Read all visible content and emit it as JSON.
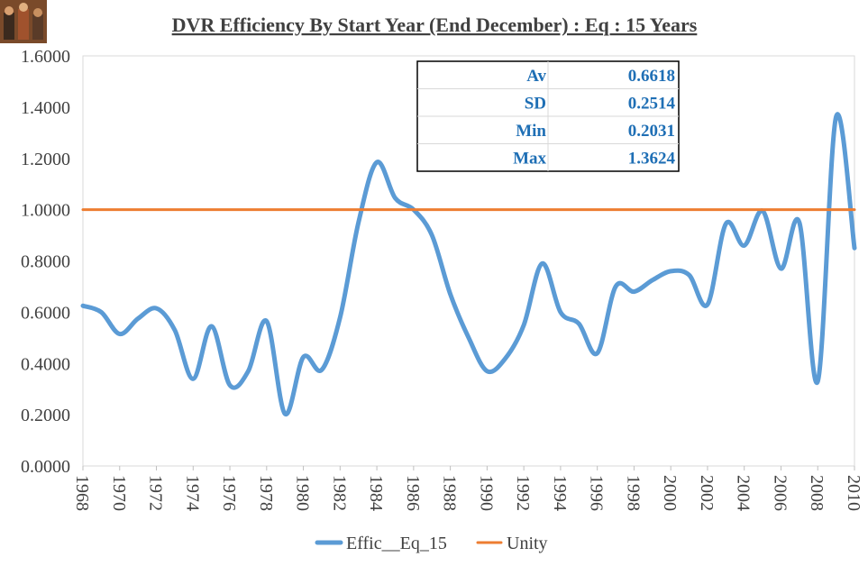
{
  "chart_data": {
    "type": "line",
    "title": "DVR Efficiency By Start Year (End December) : Eq : 15 Years",
    "xlabel": "",
    "ylabel": "",
    "xlim": [
      1968,
      2010
    ],
    "ylim": [
      0,
      1.6
    ],
    "yticks": [
      "0.0000",
      "0.2000",
      "0.4000",
      "0.6000",
      "0.8000",
      "1.0000",
      "1.2000",
      "1.4000",
      "1.6000"
    ],
    "xticks": [
      "1968",
      "1970",
      "1972",
      "1974",
      "1976",
      "1978",
      "1980",
      "1982",
      "1984",
      "1986",
      "1988",
      "1990",
      "1992",
      "1994",
      "1996",
      "1998",
      "2000",
      "2002",
      "2004",
      "2006",
      "2008",
      "2010"
    ],
    "grid": false,
    "legend_position": "bottom",
    "series": [
      {
        "name": "Effic__Eq_15",
        "color": "#5b9bd5",
        "x": [
          1968,
          1969,
          1970,
          1971,
          1972,
          1973,
          1974,
          1975,
          1976,
          1977,
          1978,
          1979,
          1980,
          1981,
          1982,
          1983,
          1984,
          1985,
          1986,
          1987,
          1988,
          1989,
          1990,
          1991,
          1992,
          1993,
          1994,
          1995,
          1996,
          1997,
          1998,
          1999,
          2000,
          2001,
          2002,
          2003,
          2004,
          2005,
          2006,
          2007,
          2008,
          2009,
          2010
        ],
        "values": [
          0.625,
          0.6,
          0.515,
          0.575,
          0.615,
          0.53,
          0.34,
          0.545,
          0.315,
          0.37,
          0.565,
          0.2031,
          0.425,
          0.375,
          0.58,
          0.95,
          1.185,
          1.045,
          1.0,
          0.9,
          0.67,
          0.5,
          0.37,
          0.42,
          0.55,
          0.79,
          0.6,
          0.555,
          0.44,
          0.7,
          0.68,
          0.725,
          0.76,
          0.745,
          0.63,
          0.945,
          0.86,
          0.995,
          0.77,
          0.95,
          0.33,
          1.3624,
          0.85
        ]
      },
      {
        "name": "Unity",
        "color": "#ed7d31",
        "x": [
          1968,
          2010
        ],
        "values": [
          1.0,
          1.0
        ]
      }
    ],
    "stats": [
      {
        "label": "Av",
        "value": "0.6618"
      },
      {
        "label": "SD",
        "value": "0.2514"
      },
      {
        "label": "Min",
        "value": "0.2031"
      },
      {
        "label": "Max",
        "value": "1.3624"
      }
    ]
  }
}
